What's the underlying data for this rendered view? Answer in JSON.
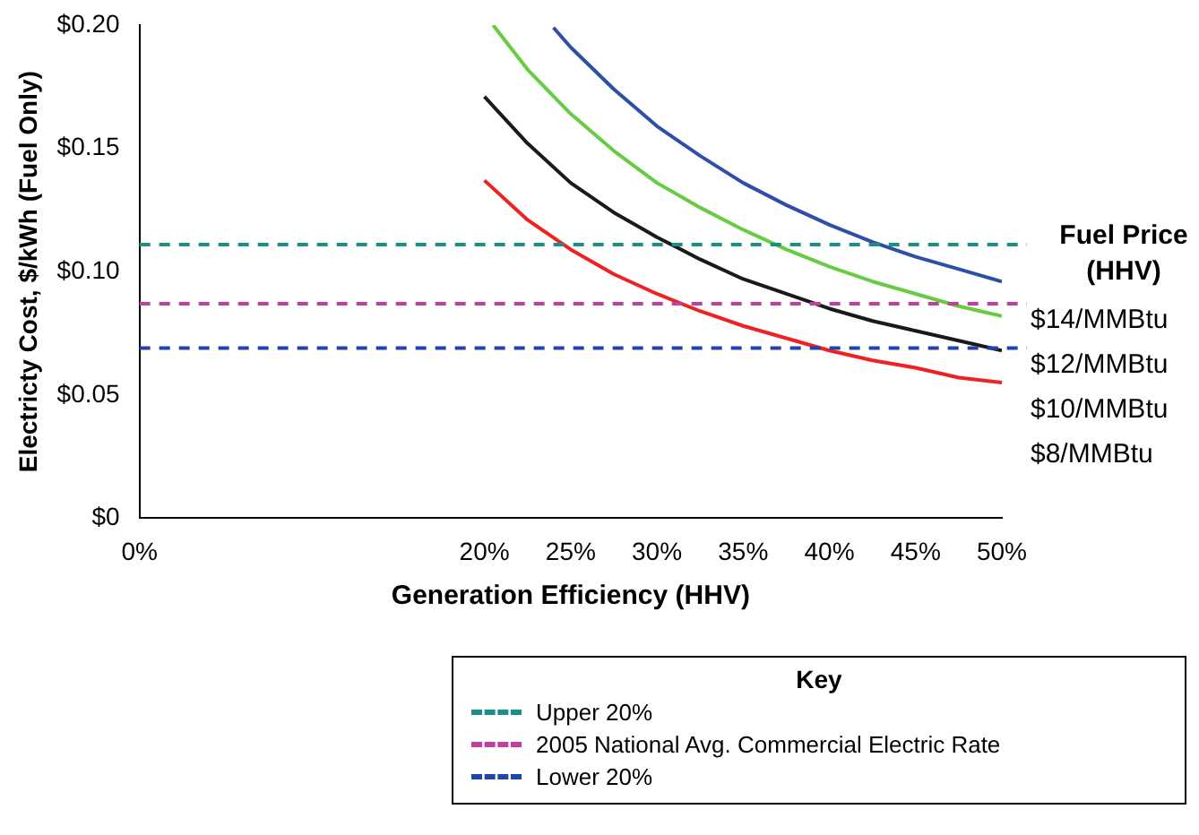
{
  "chart_data": {
    "type": "line",
    "xlabel": "Generation Efficiency (HHV)",
    "ylabel": "Electricty Cost, $/kWh (Fuel Only)",
    "legend_title": "Fuel Price (HHV)",
    "annotations": [
      "Key"
    ],
    "marker": "none",
    "legend": "bottom right",
    "xlim": [
      0,
      50
    ],
    "xticks": [
      {
        "value": 0,
        "label": "0%"
      },
      {
        "value": 20,
        "label": "20%"
      },
      {
        "value": 25,
        "label": "25%"
      },
      {
        "value": 30,
        "label": "30%"
      },
      {
        "value": 35,
        "label": "35%"
      },
      {
        "value": 40,
        "label": "40%"
      },
      {
        "value": 45,
        "label": "45%"
      },
      {
        "value": 50,
        "label": "50%"
      }
    ],
    "ylim": [
      0,
      0.2
    ],
    "yticks": [
      {
        "value": 0,
        "label": "$0"
      },
      {
        "value": 0.05,
        "label": "$0.05"
      },
      {
        "value": 0.1,
        "label": "$0.10"
      },
      {
        "value": 0.15,
        "label": "$0.15"
      },
      {
        "value": 0.2,
        "label": "$0.20"
      }
    ],
    "series": [
      {
        "name": "$14/MMBtu",
        "color": "#2e4fa8",
        "x": [
          24,
          25,
          27.5,
          30,
          32.5,
          35,
          37.5,
          40,
          42.5,
          45,
          47.5,
          50
        ],
        "values": [
          0.199,
          0.191,
          0.174,
          0.159,
          0.147,
          0.136,
          0.127,
          0.119,
          0.112,
          0.106,
          0.101,
          0.096
        ]
      },
      {
        "name": "$12/MMBtu",
        "color": "#66cc44",
        "x": [
          20.5,
          22.5,
          25,
          27.5,
          30,
          32.5,
          35,
          37.5,
          40,
          42.5,
          45,
          47.5,
          50
        ],
        "values": [
          0.2,
          0.182,
          0.164,
          0.149,
          0.136,
          0.126,
          0.117,
          0.109,
          0.102,
          0.096,
          0.091,
          0.086,
          0.082
        ]
      },
      {
        "name": "$10/MMBtu",
        "color": "#1a1a1a",
        "x": [
          20,
          22.5,
          25,
          27.5,
          30,
          32.5,
          35,
          37.5,
          40,
          42.5,
          45,
          47.5,
          50
        ],
        "values": [
          0.171,
          0.152,
          0.136,
          0.124,
          0.114,
          0.105,
          0.097,
          0.091,
          0.085,
          0.08,
          0.076,
          0.072,
          0.068
        ]
      },
      {
        "name": "$8/MMBtu",
        "color": "#ee2222",
        "x": [
          20,
          22.5,
          25,
          27.5,
          30,
          32.5,
          35,
          37.5,
          40,
          42.5,
          45,
          47.5,
          50
        ],
        "values": [
          0.137,
          0.121,
          0.109,
          0.099,
          0.091,
          0.084,
          0.078,
          0.073,
          0.068,
          0.064,
          0.061,
          0.057,
          0.055
        ]
      }
    ],
    "ref_lines": [
      {
        "axis": "y",
        "value": 0.111,
        "label": "Upper 20%",
        "color": "#1a8f86",
        "line_style": "dashed"
      },
      {
        "axis": "y",
        "value": 0.087,
        "label": "2005 National Avg. Commercial Electric Rate",
        "color": "#c040a0",
        "line_style": "dashed"
      },
      {
        "axis": "y",
        "value": 0.069,
        "label": "Lower 20%",
        "color": "#2244aa",
        "line_style": "dashed"
      }
    ]
  }
}
